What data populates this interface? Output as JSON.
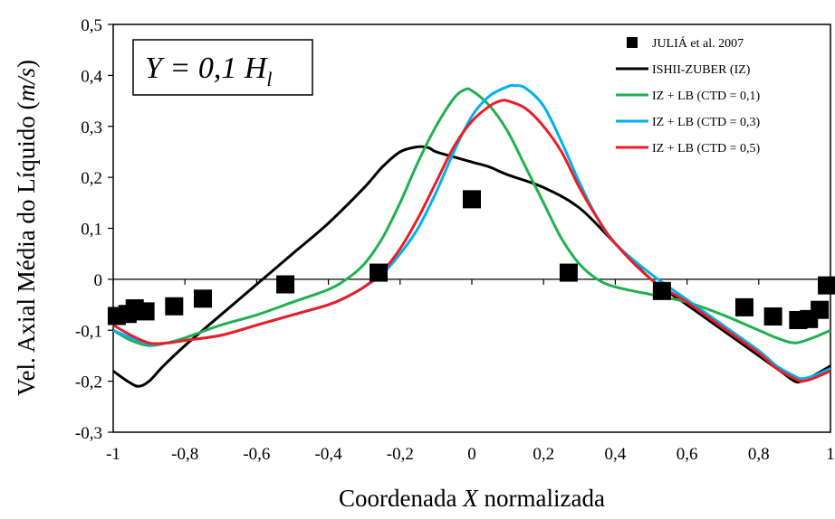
{
  "chart_data": {
    "type": "line",
    "xlabel_parts": [
      "Coordenada ",
      "X",
      " normalizada"
    ],
    "ylabel_parts": [
      "Vel. Axial Média do Líquido (",
      "m/s",
      ")"
    ],
    "annotation": {
      "parts": [
        "Y = 0,1 H",
        "l"
      ]
    },
    "xlim": [
      -1,
      1
    ],
    "ylim": [
      -0.3,
      0.5
    ],
    "x_ticks": [
      {
        "value": -1,
        "label": "-1"
      },
      {
        "value": -0.8,
        "label": "-0,8"
      },
      {
        "value": -0.6,
        "label": "-0,6"
      },
      {
        "value": -0.4,
        "label": "-0,4"
      },
      {
        "value": -0.2,
        "label": "-0,2"
      },
      {
        "value": 0,
        "label": "0"
      },
      {
        "value": 0.2,
        "label": "0,2"
      },
      {
        "value": 0.4,
        "label": "0,4"
      },
      {
        "value": 0.6,
        "label": "0,6"
      },
      {
        "value": 0.8,
        "label": "0,8"
      },
      {
        "value": 1,
        "label": "1"
      }
    ],
    "y_ticks": [
      {
        "value": -0.3,
        "label": "-0,3"
      },
      {
        "value": -0.2,
        "label": "-0,2"
      },
      {
        "value": -0.1,
        "label": "-0,1"
      },
      {
        "value": 0,
        "label": "0"
      },
      {
        "value": 0.1,
        "label": "0,1"
      },
      {
        "value": 0.2,
        "label": "0,2"
      },
      {
        "value": 0.3,
        "label": "0,3"
      },
      {
        "value": 0.4,
        "label": "0,4"
      },
      {
        "value": 0.5,
        "label": "0,5"
      }
    ],
    "grid": false,
    "legend_position": "top-right",
    "series": [
      {
        "name": "JULIÁ et al. 2007",
        "kind": "scatter",
        "color": "#000000",
        "x": [
          -0.99,
          -0.96,
          -0.94,
          -0.91,
          -0.83,
          -0.75,
          -0.52,
          -0.26,
          0.0,
          0.27,
          0.53,
          0.76,
          0.84,
          0.91,
          0.94,
          0.97,
          0.99
        ],
        "y": [
          -0.072,
          -0.068,
          -0.057,
          -0.063,
          -0.053,
          -0.038,
          -0.01,
          0.013,
          0.157,
          0.013,
          -0.023,
          -0.055,
          -0.073,
          -0.08,
          -0.078,
          -0.06,
          -0.012
        ]
      },
      {
        "name": "ISHII-ZUBER (IZ)",
        "kind": "line",
        "color": "#000000",
        "x": [
          -1,
          -0.96,
          -0.93,
          -0.9,
          -0.86,
          -0.8,
          -0.7,
          -0.6,
          -0.5,
          -0.4,
          -0.3,
          -0.25,
          -0.2,
          -0.15,
          -0.12,
          -0.1,
          -0.05,
          0,
          0.05,
          0.1,
          0.2,
          0.3,
          0.4,
          0.5,
          0.6,
          0.7,
          0.8,
          0.86,
          0.9,
          0.92,
          0.95,
          1
        ],
        "y": [
          -0.18,
          -0.2,
          -0.21,
          -0.2,
          -0.17,
          -0.13,
          -0.07,
          -0.01,
          0.05,
          0.11,
          0.18,
          0.22,
          0.25,
          0.26,
          0.258,
          0.25,
          0.24,
          0.23,
          0.22,
          0.205,
          0.18,
          0.14,
          0.07,
          0.0,
          -0.05,
          -0.1,
          -0.15,
          -0.18,
          -0.2,
          -0.2,
          -0.19,
          -0.17
        ]
      },
      {
        "name": "IZ + LB (CTD = 0,1)",
        "kind": "line",
        "color": "#20b050",
        "x": [
          -1,
          -0.95,
          -0.9,
          -0.85,
          -0.8,
          -0.7,
          -0.6,
          -0.5,
          -0.4,
          -0.35,
          -0.3,
          -0.25,
          -0.2,
          -0.15,
          -0.1,
          -0.05,
          -0.02,
          0.0,
          0.05,
          0.1,
          0.15,
          0.2,
          0.25,
          0.3,
          0.35,
          0.4,
          0.5,
          0.6,
          0.7,
          0.8,
          0.85,
          0.9,
          0.95,
          1
        ],
        "y": [
          -0.1,
          -0.12,
          -0.13,
          -0.125,
          -0.115,
          -0.09,
          -0.07,
          -0.045,
          -0.02,
          0.0,
          0.03,
          0.08,
          0.15,
          0.23,
          0.3,
          0.355,
          0.372,
          0.37,
          0.34,
          0.29,
          0.22,
          0.15,
          0.08,
          0.03,
          0.0,
          -0.015,
          -0.03,
          -0.045,
          -0.07,
          -0.1,
          -0.115,
          -0.125,
          -0.115,
          -0.1
        ]
      },
      {
        "name": "IZ + LB (CTD = 0,3)",
        "kind": "line",
        "color": "#00b0f0",
        "x": [
          -1,
          -0.95,
          -0.9,
          -0.85,
          -0.8,
          -0.7,
          -0.6,
          -0.5,
          -0.4,
          -0.35,
          -0.3,
          -0.25,
          -0.2,
          -0.15,
          -0.1,
          -0.05,
          0.0,
          0.05,
          0.1,
          0.12,
          0.15,
          0.2,
          0.25,
          0.3,
          0.35,
          0.4,
          0.5,
          0.6,
          0.7,
          0.8,
          0.85,
          0.9,
          0.92,
          0.95,
          1
        ],
        "y": [
          -0.1,
          -0.115,
          -0.127,
          -0.125,
          -0.12,
          -0.11,
          -0.09,
          -0.07,
          -0.05,
          -0.035,
          -0.015,
          0.01,
          0.05,
          0.1,
          0.17,
          0.25,
          0.32,
          0.36,
          0.378,
          0.38,
          0.375,
          0.34,
          0.27,
          0.19,
          0.12,
          0.07,
          0.01,
          -0.04,
          -0.09,
          -0.14,
          -0.17,
          -0.19,
          -0.195,
          -0.19,
          -0.175
        ]
      },
      {
        "name": "IZ + LB (CTD = 0,5)",
        "kind": "line",
        "color": "#ee1c24",
        "x": [
          -1,
          -0.95,
          -0.9,
          -0.85,
          -0.8,
          -0.7,
          -0.6,
          -0.5,
          -0.4,
          -0.35,
          -0.3,
          -0.25,
          -0.2,
          -0.15,
          -0.1,
          -0.05,
          0.0,
          0.05,
          0.08,
          0.1,
          0.15,
          0.2,
          0.25,
          0.3,
          0.35,
          0.4,
          0.5,
          0.6,
          0.7,
          0.8,
          0.85,
          0.9,
          0.92,
          0.95,
          1
        ],
        "y": [
          -0.09,
          -0.11,
          -0.125,
          -0.125,
          -0.12,
          -0.11,
          -0.09,
          -0.07,
          -0.05,
          -0.035,
          -0.015,
          0.015,
          0.06,
          0.12,
          0.19,
          0.26,
          0.31,
          0.34,
          0.35,
          0.35,
          0.335,
          0.3,
          0.25,
          0.18,
          0.12,
          0.07,
          0.0,
          -0.045,
          -0.095,
          -0.145,
          -0.175,
          -0.195,
          -0.2,
          -0.195,
          -0.18
        ]
      }
    ]
  }
}
